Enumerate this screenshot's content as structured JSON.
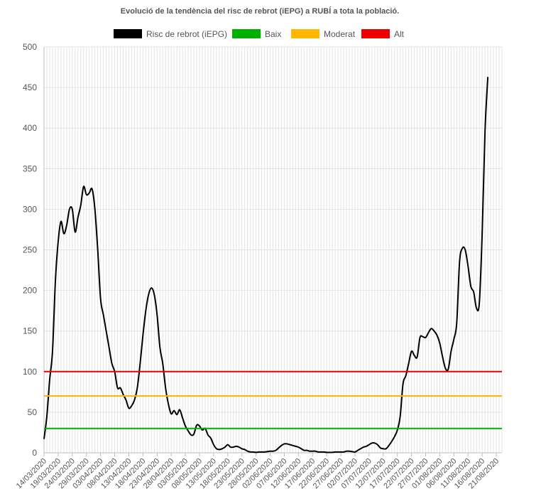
{
  "chart_data": {
    "type": "line",
    "title": "Evolució de la tendència del risc de rebrot (iEPG) a RUBÍ a tota la població.",
    "xlabel": "",
    "ylabel": "",
    "ylim": [
      0,
      500
    ],
    "yticks": [
      0,
      50,
      100,
      150,
      200,
      250,
      300,
      350,
      400,
      450,
      500
    ],
    "grid": true,
    "legend_position": "top",
    "x_start": "14/03/2020",
    "x_end": "23/08/2020",
    "x_tick_labels": [
      "14/03/2020",
      "19/03/2020",
      "24/03/2020",
      "29/03/2020",
      "03/04/2020",
      "08/04/2020",
      "13/04/2020",
      "18/04/2020",
      "23/04/2020",
      "28/04/2020",
      "03/05/2020",
      "08/05/2020",
      "13/05/2020",
      "18/05/2020",
      "23/05/2020",
      "28/05/2020",
      "02/06/2020",
      "07/06/2020",
      "12/06/2020",
      "17/06/2020",
      "22/06/2020",
      "27/06/2020",
      "02/07/2020",
      "07/07/2020",
      "12/07/2020",
      "17/07/2020",
      "22/07/2020",
      "27/07/2020",
      "01/08/2020",
      "06/08/2020",
      "11/08/2020",
      "16/08/2020",
      "21/08/2020"
    ],
    "series": [
      {
        "name": "Risc de rebrot (iEPG)",
        "color": "#000000",
        "points": [
          [
            "14/03/2020",
            17
          ],
          [
            "15/03/2020",
            45
          ],
          [
            "16/03/2020",
            90
          ],
          [
            "17/03/2020",
            125
          ],
          [
            "18/03/2020",
            210
          ],
          [
            "19/03/2020",
            260
          ],
          [
            "20/03/2020",
            285
          ],
          [
            "21/03/2020",
            270
          ],
          [
            "22/03/2020",
            280
          ],
          [
            "23/03/2020",
            300
          ],
          [
            "24/03/2020",
            300
          ],
          [
            "25/03/2020",
            272
          ],
          [
            "26/03/2020",
            290
          ],
          [
            "27/03/2020",
            305
          ],
          [
            "28/03/2020",
            328
          ],
          [
            "29/03/2020",
            318
          ],
          [
            "30/03/2020",
            320
          ],
          [
            "31/03/2020",
            325
          ],
          [
            "01/04/2020",
            300
          ],
          [
            "02/04/2020",
            250
          ],
          [
            "03/04/2020",
            190
          ],
          [
            "04/04/2020",
            170
          ],
          [
            "05/04/2020",
            150
          ],
          [
            "06/04/2020",
            130
          ],
          [
            "07/04/2020",
            110
          ],
          [
            "08/04/2020",
            100
          ],
          [
            "09/04/2020",
            80
          ],
          [
            "10/04/2020",
            80
          ],
          [
            "11/04/2020",
            72
          ],
          [
            "12/04/2020",
            65
          ],
          [
            "13/04/2020",
            55
          ],
          [
            "14/04/2020",
            58
          ],
          [
            "15/04/2020",
            65
          ],
          [
            "16/04/2020",
            80
          ],
          [
            "17/04/2020",
            110
          ],
          [
            "18/04/2020",
            145
          ],
          [
            "19/04/2020",
            175
          ],
          [
            "20/04/2020",
            195
          ],
          [
            "21/04/2020",
            203
          ],
          [
            "22/04/2020",
            195
          ],
          [
            "23/04/2020",
            170
          ],
          [
            "24/04/2020",
            130
          ],
          [
            "25/04/2020",
            110
          ],
          [
            "26/04/2020",
            80
          ],
          [
            "27/04/2020",
            60
          ],
          [
            "28/04/2020",
            48
          ],
          [
            "29/04/2020",
            52
          ],
          [
            "30/04/2020",
            47
          ],
          [
            "01/05/2020",
            53
          ],
          [
            "02/05/2020",
            43
          ],
          [
            "03/05/2020",
            33
          ],
          [
            "04/05/2020",
            27
          ],
          [
            "05/05/2020",
            22
          ],
          [
            "06/05/2020",
            23
          ],
          [
            "07/05/2020",
            34
          ],
          [
            "08/05/2020",
            33
          ],
          [
            "09/05/2020",
            28
          ],
          [
            "10/05/2020",
            30
          ],
          [
            "11/05/2020",
            22
          ],
          [
            "12/05/2020",
            18
          ],
          [
            "13/05/2020",
            10
          ],
          [
            "14/05/2020",
            5
          ],
          [
            "15/05/2020",
            4
          ],
          [
            "16/05/2020",
            5
          ],
          [
            "17/05/2020",
            7
          ],
          [
            "18/05/2020",
            10
          ],
          [
            "19/05/2020",
            7
          ],
          [
            "20/05/2020",
            7
          ],
          [
            "21/05/2020",
            8
          ],
          [
            "22/05/2020",
            7
          ],
          [
            "23/05/2020",
            5
          ],
          [
            "24/05/2020",
            4
          ],
          [
            "25/05/2020",
            2
          ],
          [
            "26/05/2020",
            1
          ],
          [
            "27/05/2020",
            1
          ],
          [
            "28/05/2020",
            0.5
          ],
          [
            "29/05/2020",
            1
          ],
          [
            "30/05/2020",
            1
          ],
          [
            "31/05/2020",
            1
          ],
          [
            "01/06/2020",
            1.5
          ],
          [
            "02/06/2020",
            2
          ],
          [
            "03/06/2020",
            2
          ],
          [
            "04/06/2020",
            3
          ],
          [
            "05/06/2020",
            6
          ],
          [
            "06/06/2020",
            9
          ],
          [
            "07/06/2020",
            11
          ],
          [
            "08/06/2020",
            11
          ],
          [
            "09/06/2020",
            10
          ],
          [
            "10/06/2020",
            9
          ],
          [
            "11/06/2020",
            8
          ],
          [
            "12/06/2020",
            7
          ],
          [
            "13/06/2020",
            5
          ],
          [
            "14/06/2020",
            3
          ],
          [
            "15/06/2020",
            3
          ],
          [
            "16/06/2020",
            2
          ],
          [
            "17/06/2020",
            2
          ],
          [
            "18/06/2020",
            2
          ],
          [
            "19/06/2020",
            1
          ],
          [
            "20/06/2020",
            1
          ],
          [
            "21/06/2020",
            1
          ],
          [
            "22/06/2020",
            0.5
          ],
          [
            "23/06/2020",
            0.5
          ],
          [
            "24/06/2020",
            0.5
          ],
          [
            "25/06/2020",
            1
          ],
          [
            "26/06/2020",
            1
          ],
          [
            "27/06/2020",
            1
          ],
          [
            "28/06/2020",
            1
          ],
          [
            "29/06/2020",
            2
          ],
          [
            "30/06/2020",
            2
          ],
          [
            "01/07/2020",
            1.5
          ],
          [
            "02/07/2020",
            1
          ],
          [
            "03/07/2020",
            3
          ],
          [
            "04/07/2020",
            5
          ],
          [
            "05/07/2020",
            7
          ],
          [
            "06/07/2020",
            8
          ],
          [
            "07/07/2020",
            10
          ],
          [
            "08/07/2020",
            12
          ],
          [
            "09/07/2020",
            12
          ],
          [
            "10/07/2020",
            10
          ],
          [
            "11/07/2020",
            6
          ],
          [
            "12/07/2020",
            5
          ],
          [
            "13/07/2020",
            5
          ],
          [
            "14/07/2020",
            9
          ],
          [
            "15/07/2020",
            14
          ],
          [
            "16/07/2020",
            20
          ],
          [
            "17/07/2020",
            28
          ],
          [
            "18/07/2020",
            45
          ],
          [
            "19/07/2020",
            85
          ],
          [
            "20/07/2020",
            95
          ],
          [
            "21/07/2020",
            110
          ],
          [
            "22/07/2020",
            125
          ],
          [
            "23/07/2020",
            120
          ],
          [
            "24/07/2020",
            118
          ],
          [
            "25/07/2020",
            142
          ],
          [
            "26/07/2020",
            143
          ],
          [
            "27/07/2020",
            142
          ],
          [
            "28/07/2020",
            148
          ],
          [
            "29/07/2020",
            153
          ],
          [
            "30/07/2020",
            150
          ],
          [
            "31/07/2020",
            145
          ],
          [
            "01/08/2020",
            135
          ],
          [
            "02/08/2020",
            118
          ],
          [
            "03/08/2020",
            104
          ],
          [
            "04/08/2020",
            103
          ],
          [
            "05/08/2020",
            125
          ],
          [
            "06/08/2020",
            140
          ],
          [
            "07/08/2020",
            160
          ],
          [
            "08/08/2020",
            235
          ],
          [
            "09/08/2020",
            252
          ],
          [
            "10/08/2020",
            250
          ],
          [
            "11/08/2020",
            230
          ],
          [
            "12/08/2020",
            205
          ],
          [
            "13/08/2020",
            198
          ],
          [
            "14/08/2020",
            178
          ],
          [
            "15/08/2020",
            185
          ],
          [
            "16/08/2020",
            270
          ],
          [
            "17/08/2020",
            395
          ],
          [
            "18/08/2020",
            463
          ]
        ]
      },
      {
        "name": "Baix",
        "color": "#00b000",
        "values": [
          30,
          30
        ]
      },
      {
        "name": "Moderat",
        "color": "#ffb600",
        "values": [
          70,
          70
        ]
      },
      {
        "name": "Alt",
        "color": "#ee0000",
        "values": [
          100,
          100
        ]
      }
    ]
  }
}
